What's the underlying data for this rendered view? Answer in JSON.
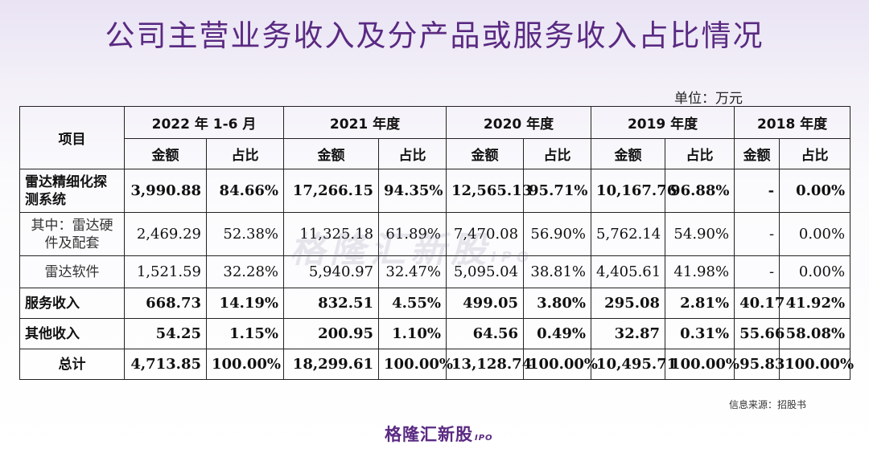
{
  "title": "公司主营业务收入及分产品或服务收入占比情况",
  "unit": "单位：万元",
  "table": {
    "item_header": "项目",
    "periods": [
      "2022 年 1-6 月",
      "2021 年度",
      "2020 年度",
      "2019 年度",
      "2018 年度"
    ],
    "sub_headers": [
      "金额",
      "占比"
    ],
    "rows": [
      {
        "label": "雷达精细化探测系统",
        "cells": [
          "3,990.88",
          "84.66%",
          "17,266.15",
          "94.35%",
          "12,565.13",
          "95.71%",
          "10,167.76",
          "96.88%",
          "-",
          "0.00%"
        ]
      },
      {
        "label": "其中：雷达硬件及配套",
        "cells": [
          "2,469.29",
          "52.38%",
          "11,325.18",
          "61.89%",
          "7,470.08",
          "56.90%",
          "5,762.14",
          "54.90%",
          "-",
          "0.00%"
        ]
      },
      {
        "label": "雷达软件",
        "cells": [
          "1,521.59",
          "32.28%",
          "5,940.97",
          "32.47%",
          "5,095.04",
          "38.81%",
          "4,405.61",
          "41.98%",
          "-",
          "0.00%"
        ]
      },
      {
        "label": "服务收入",
        "cells": [
          "668.73",
          "14.19%",
          "832.51",
          "4.55%",
          "499.05",
          "3.80%",
          "295.08",
          "2.81%",
          "40.17",
          "41.92%"
        ]
      },
      {
        "label": "其他收入",
        "cells": [
          "54.25",
          "1.15%",
          "200.95",
          "1.10%",
          "64.56",
          "0.49%",
          "32.87",
          "0.31%",
          "55.66",
          "58.08%"
        ]
      },
      {
        "label": "总计",
        "cells": [
          "4,713.85",
          "100.00%",
          "18,299.61",
          "100.00%",
          "13,128.74",
          "100.00%",
          "10,495.71",
          "100.00%",
          "95.83",
          "100.00%"
        ]
      }
    ]
  },
  "source": "信息来源：招股书",
  "logo": {
    "text": "格隆汇新股",
    "suffix": "IPO"
  },
  "watermark": {
    "text": "格隆汇新股",
    "suffix": "IPO"
  }
}
